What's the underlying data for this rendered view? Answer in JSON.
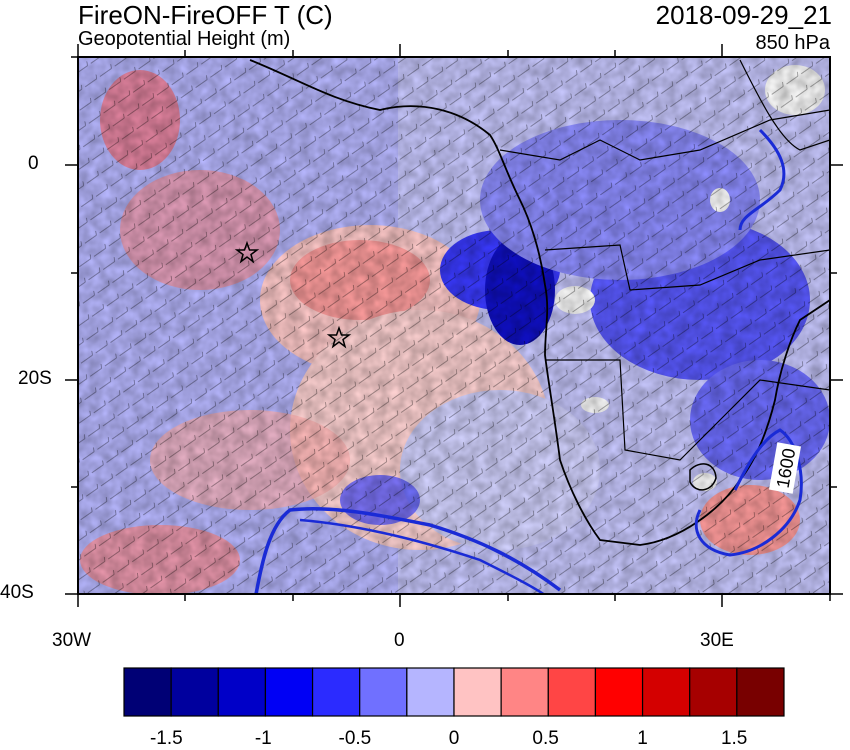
{
  "header": {
    "title": "FireON-FireOFF T (C)",
    "subtitle": "Geopotential Height (m)",
    "timestamp": "2018-09-29_21",
    "level": "850 hPa"
  },
  "map": {
    "x_axis": {
      "labels": [
        "30W",
        "0",
        "30E"
      ]
    },
    "y_axis": {
      "labels": [
        "0",
        "20S",
        "40S"
      ]
    },
    "contour_label": "1600",
    "contour_color": "#1a2bd6",
    "coastline_color": "#000000",
    "markers": [
      "star",
      "star"
    ]
  },
  "colorbar": {
    "colors": [
      "#000075",
      "#00009e",
      "#0000c8",
      "#0000f5",
      "#2b2bff",
      "#7070ff",
      "#b5b5ff",
      "#ffc3c3",
      "#ff8585",
      "#ff4545",
      "#ff0000",
      "#d40000",
      "#a60000",
      "#780000"
    ],
    "tick_labels": [
      "-1.5",
      "-1",
      "-0.5",
      "0",
      "0.5",
      "1",
      "1.5"
    ]
  }
}
